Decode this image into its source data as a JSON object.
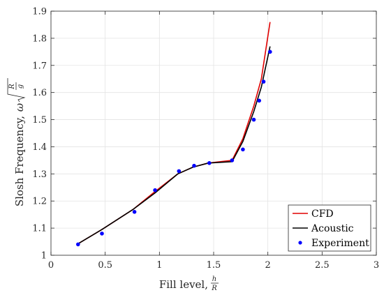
{
  "chart_data": {
    "type": "line",
    "xlim": [
      0,
      3
    ],
    "ylim": [
      1,
      1.9
    ],
    "x_ticks": [
      0,
      0.5,
      1,
      1.5,
      2,
      2.5,
      3
    ],
    "x_tick_labels": [
      "0",
      "0.5",
      "1",
      "1.5",
      "2",
      "2.5",
      "3"
    ],
    "y_ticks": [
      1,
      1.1,
      1.2,
      1.3,
      1.4,
      1.5,
      1.6,
      1.7,
      1.8,
      1.9
    ],
    "y_tick_labels": [
      "1",
      "1.1",
      "1.2",
      "1.3",
      "1.4",
      "1.5",
      "1.6",
      "1.7",
      "1.8",
      "1.9"
    ],
    "grid": true,
    "legend_position": "bottom-right",
    "xlabel": {
      "text": "Fill level,",
      "frac_num": "h",
      "frac_den": "R"
    },
    "ylabel": {
      "text": "Slosh Frequency,",
      "symbol": "ω",
      "frac_num": "R",
      "frac_den": "g"
    },
    "series": [
      {
        "name": "CFD",
        "kind": "line",
        "color": "#e00000",
        "x": [
          0.24,
          0.47,
          0.76,
          0.96,
          1.17,
          1.31,
          1.45,
          1.67,
          1.77,
          1.87,
          1.94,
          2.02
        ],
        "y": [
          1.04,
          1.095,
          1.17,
          1.235,
          1.3,
          1.325,
          1.34,
          1.35,
          1.43,
          1.55,
          1.65,
          1.86
        ]
      },
      {
        "name": "Acoustic",
        "kind": "line",
        "color": "#000000",
        "x": [
          0.24,
          0.47,
          0.76,
          0.96,
          1.17,
          1.31,
          1.45,
          1.67,
          1.77,
          1.87,
          1.94,
          2.02
        ],
        "y": [
          1.04,
          1.095,
          1.17,
          1.23,
          1.3,
          1.325,
          1.34,
          1.345,
          1.42,
          1.53,
          1.62,
          1.77
        ]
      },
      {
        "name": "Experiment",
        "kind": "scatter",
        "color": "#0000ff",
        "x": [
          0.25,
          0.47,
          0.77,
          0.96,
          1.18,
          1.32,
          1.46,
          1.67,
          1.77,
          1.87,
          1.92,
          1.96,
          2.02
        ],
        "y": [
          1.04,
          1.08,
          1.16,
          1.24,
          1.31,
          1.33,
          1.34,
          1.35,
          1.39,
          1.5,
          1.57,
          1.64,
          1.75
        ]
      }
    ]
  }
}
